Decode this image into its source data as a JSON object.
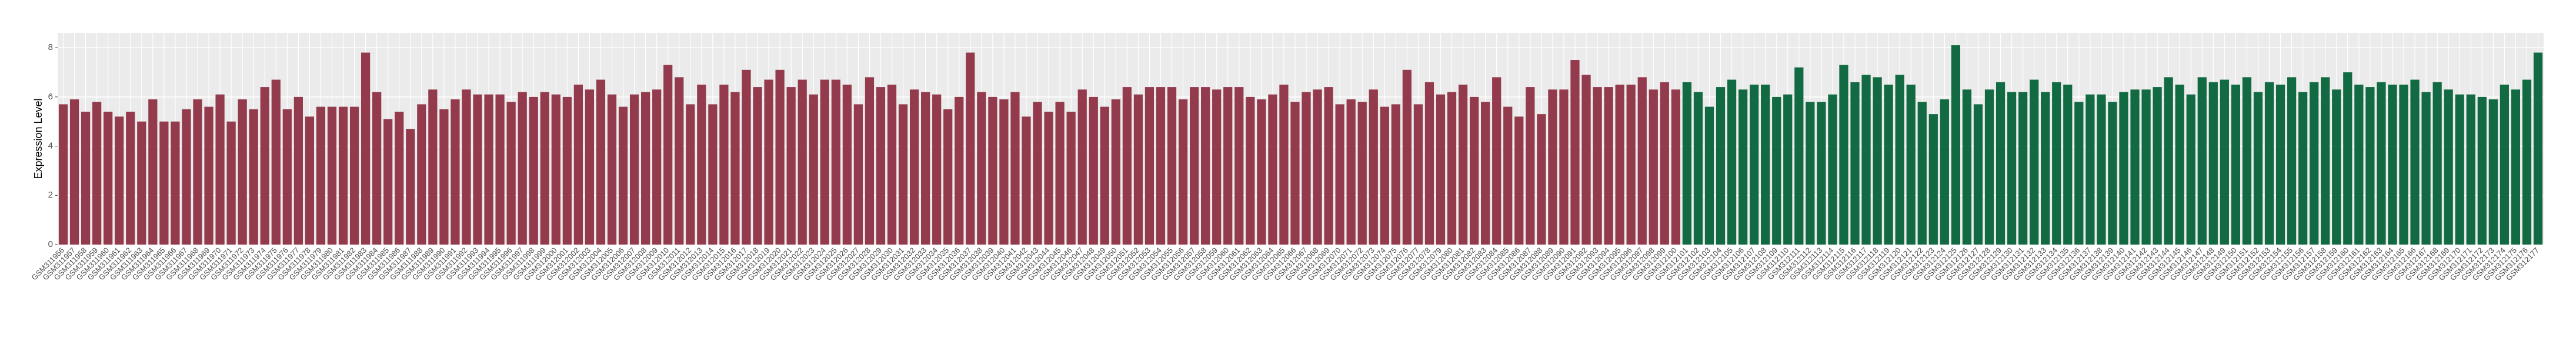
{
  "chart_data": {
    "type": "bar",
    "y_label": "Expression Level",
    "categories": [
      "GSM311956",
      "GSM311957",
      "GSM311958",
      "GSM311959",
      "GSM311960",
      "GSM311961",
      "GSM311962",
      "GSM311963",
      "GSM311964",
      "GSM311965",
      "GSM311966",
      "GSM311967",
      "GSM311968",
      "GSM311969",
      "GSM311970",
      "GSM311971",
      "GSM311972",
      "GSM311973",
      "GSM311974",
      "GSM311975",
      "GSM311976",
      "GSM311977",
      "GSM311978",
      "GSM311979",
      "GSM311980",
      "GSM311981",
      "GSM311982",
      "GSM311983",
      "GSM311984",
      "GSM311985",
      "GSM311986",
      "GSM311987",
      "GSM311988",
      "GSM311989",
      "GSM311990",
      "GSM311991",
      "GSM311992",
      "GSM311993",
      "GSM311994",
      "GSM311995",
      "GSM311996",
      "GSM311997",
      "GSM311998",
      "GSM311999",
      "GSM312000",
      "GSM312001",
      "GSM312002",
      "GSM312003",
      "GSM312004",
      "GSM312005",
      "GSM312006",
      "GSM312007",
      "GSM312008",
      "GSM312009",
      "GSM312010",
      "GSM312011",
      "GSM312012",
      "GSM312013",
      "GSM312014",
      "GSM312015",
      "GSM312016",
      "GSM312017",
      "GSM312018",
      "GSM312019",
      "GSM312020",
      "GSM312021",
      "GSM312022",
      "GSM312023",
      "GSM312024",
      "GSM312025",
      "GSM312026",
      "GSM312027",
      "GSM312028",
      "GSM312029",
      "GSM312030",
      "GSM312031",
      "GSM312032",
      "GSM312033",
      "GSM312034",
      "GSM312035",
      "GSM312036",
      "GSM312037",
      "GSM312038",
      "GSM312039",
      "GSM312040",
      "GSM312041",
      "GSM312042",
      "GSM312043",
      "GSM312044",
      "GSM312045",
      "GSM312046",
      "GSM312047",
      "GSM312048",
      "GSM312049",
      "GSM312050",
      "GSM312051",
      "GSM312052",
      "GSM312053",
      "GSM312054",
      "GSM312055",
      "GSM312056",
      "GSM312057",
      "GSM312058",
      "GSM312059",
      "GSM312060",
      "GSM312061",
      "GSM312062",
      "GSM312063",
      "GSM312064",
      "GSM312065",
      "GSM312066",
      "GSM312067",
      "GSM312068",
      "GSM312069",
      "GSM312070",
      "GSM312071",
      "GSM312072",
      "GSM312073",
      "GSM312074",
      "GSM312075",
      "GSM312076",
      "GSM312077",
      "GSM312078",
      "GSM312079",
      "GSM312080",
      "GSM312081",
      "GSM312082",
      "GSM312083",
      "GSM312084",
      "GSM312085",
      "GSM312086",
      "GSM312087",
      "GSM312088",
      "GSM312089",
      "GSM312090",
      "GSM312091",
      "GSM312092",
      "GSM312093",
      "GSM312094",
      "GSM312095",
      "GSM312096",
      "GSM312097",
      "GSM312098",
      "GSM312099",
      "GSM312100",
      "GSM312101",
      "GSM312102",
      "GSM312103",
      "GSM312104",
      "GSM312105",
      "GSM312106",
      "GSM312107",
      "GSM312108",
      "GSM312109",
      "GSM312110",
      "GSM312111",
      "GSM312112",
      "GSM312113",
      "GSM312114",
      "GSM312115",
      "GSM312116",
      "GSM312117",
      "GSM312118",
      "GSM312119",
      "GSM312120",
      "GSM312121",
      "GSM312122",
      "GSM312123",
      "GSM312124",
      "GSM312125",
      "GSM312126",
      "GSM312127",
      "GSM312128",
      "GSM312129",
      "GSM312130",
      "GSM312131",
      "GSM312132",
      "GSM312133",
      "GSM312134",
      "GSM312135",
      "GSM312136",
      "GSM312137",
      "GSM312138",
      "GSM312139",
      "GSM312140",
      "GSM312141",
      "GSM312142",
      "GSM312143",
      "GSM312144",
      "GSM312145",
      "GSM312146",
      "GSM312147",
      "GSM312148",
      "GSM312149",
      "GSM312150",
      "GSM312151",
      "GSM312152",
      "GSM312153",
      "GSM312154",
      "GSM312155",
      "GSM312156",
      "GSM312157",
      "GSM312158",
      "GSM312159",
      "GSM312160",
      "GSM312161",
      "GSM312162",
      "GSM312163",
      "GSM312164",
      "GSM312165",
      "GSM312166",
      "GSM312167",
      "GSM312168",
      "GSM312169",
      "GSM312170",
      "GSM312171",
      "GSM312172",
      "GSM312173",
      "GSM312174",
      "GSM312175",
      "GSM312176",
      "GSM312177"
    ],
    "values": [
      5.7,
      5.9,
      5.4,
      5.8,
      5.4,
      5.2,
      5.4,
      5.0,
      5.9,
      5.0,
      5.0,
      5.5,
      5.9,
      5.6,
      6.1,
      5.0,
      5.9,
      5.5,
      6.4,
      6.7,
      5.5,
      6.0,
      5.2,
      5.6,
      5.6,
      5.6,
      5.6,
      7.8,
      6.2,
      5.1,
      5.4,
      4.7,
      5.7,
      6.3,
      5.5,
      5.9,
      6.3,
      6.1,
      6.1,
      6.1,
      5.8,
      6.2,
      6.0,
      6.2,
      6.1,
      6.0,
      6.5,
      6.3,
      6.7,
      6.1,
      5.6,
      6.1,
      6.2,
      6.3,
      7.3,
      6.8,
      5.7,
      6.5,
      5.7,
      6.5,
      6.2,
      7.1,
      6.4,
      6.7,
      7.1,
      6.4,
      6.7,
      6.1,
      6.7,
      6.7,
      6.5,
      5.7,
      6.8,
      6.4,
      6.5,
      5.7,
      6.3,
      6.2,
      6.1,
      5.5,
      6.0,
      7.8,
      6.2,
      6.0,
      5.9,
      6.2,
      5.2,
      5.8,
      5.4,
      5.8,
      5.4,
      6.3,
      6.0,
      5.6,
      5.9,
      6.4,
      6.1,
      6.4,
      6.4,
      6.4,
      5.9,
      6.4,
      6.4,
      6.3,
      6.4,
      6.4,
      6.0,
      5.9,
      6.1,
      6.5,
      5.8,
      6.2,
      6.3,
      6.4,
      5.7,
      5.9,
      5.8,
      6.3,
      5.6,
      5.7,
      7.1,
      5.7,
      6.6,
      6.1,
      6.2,
      6.5,
      6.0,
      5.8,
      6.8,
      5.6,
      5.2,
      6.4,
      5.3,
      6.3,
      6.3,
      7.5,
      6.9,
      6.4,
      6.4,
      6.5,
      6.5,
      6.8,
      6.3,
      6.6,
      6.3,
      6.6,
      6.2,
      5.6,
      6.4,
      6.7,
      6.3,
      6.5,
      6.5,
      6.0,
      6.1,
      7.2,
      5.8,
      5.8,
      6.1,
      7.3,
      6.6,
      6.9,
      6.8,
      6.5,
      6.9,
      6.5,
      5.8,
      5.3,
      5.9,
      8.1,
      6.3,
      5.7,
      6.3,
      6.6,
      6.2,
      6.2,
      6.7,
      6.2,
      6.6,
      6.5,
      5.8,
      6.1,
      6.1,
      5.8,
      6.2,
      6.3,
      6.3,
      6.4,
      6.8,
      6.5,
      6.1,
      6.8,
      6.6,
      6.7,
      6.5,
      6.8,
      6.2,
      6.6,
      6.5,
      6.8,
      6.2,
      6.6,
      6.8,
      6.3,
      7.0,
      6.5,
      6.4,
      6.6,
      6.5,
      6.5,
      6.7,
      6.2,
      6.6,
      6.3,
      6.1,
      6.1,
      6.0,
      5.9,
      6.5,
      6.3,
      6.7,
      7.8
    ],
    "colors": [
      "#943a4d",
      "#943a4d",
      "#943a4d",
      "#943a4d",
      "#943a4d",
      "#943a4d",
      "#943a4d",
      "#943a4d",
      "#943a4d",
      "#943a4d",
      "#943a4d",
      "#943a4d",
      "#943a4d",
      "#943a4d",
      "#943a4d",
      "#943a4d",
      "#943a4d",
      "#943a4d",
      "#943a4d",
      "#943a4d",
      "#943a4d",
      "#943a4d",
      "#943a4d",
      "#943a4d",
      "#943a4d",
      "#943a4d",
      "#943a4d",
      "#943a4d",
      "#943a4d",
      "#943a4d",
      "#943a4d",
      "#943a4d",
      "#943a4d",
      "#943a4d",
      "#943a4d",
      "#943a4d",
      "#943a4d",
      "#943a4d",
      "#943a4d",
      "#943a4d",
      "#943a4d",
      "#943a4d",
      "#943a4d",
      "#943a4d",
      "#943a4d",
      "#943a4d",
      "#943a4d",
      "#943a4d",
      "#943a4d",
      "#943a4d",
      "#943a4d",
      "#943a4d",
      "#943a4d",
      "#943a4d",
      "#943a4d",
      "#943a4d",
      "#943a4d",
      "#943a4d",
      "#943a4d",
      "#943a4d",
      "#943a4d",
      "#943a4d",
      "#943a4d",
      "#943a4d",
      "#943a4d",
      "#943a4d",
      "#943a4d",
      "#943a4d",
      "#943a4d",
      "#943a4d",
      "#943a4d",
      "#943a4d",
      "#943a4d",
      "#943a4d",
      "#943a4d",
      "#943a4d",
      "#943a4d",
      "#943a4d",
      "#943a4d",
      "#943a4d",
      "#943a4d",
      "#943a4d",
      "#943a4d",
      "#943a4d",
      "#943a4d",
      "#943a4d",
      "#943a4d",
      "#943a4d",
      "#943a4d",
      "#943a4d",
      "#943a4d",
      "#943a4d",
      "#943a4d",
      "#943a4d",
      "#943a4d",
      "#943a4d",
      "#943a4d",
      "#943a4d",
      "#943a4d",
      "#943a4d",
      "#943a4d",
      "#943a4d",
      "#943a4d",
      "#943a4d",
      "#943a4d",
      "#943a4d",
      "#943a4d",
      "#943a4d",
      "#943a4d",
      "#943a4d",
      "#943a4d",
      "#943a4d",
      "#943a4d",
      "#943a4d",
      "#943a4d",
      "#943a4d",
      "#943a4d",
      "#943a4d",
      "#943a4d",
      "#943a4d",
      "#943a4d",
      "#943a4d",
      "#943a4d",
      "#943a4d",
      "#943a4d",
      "#943a4d",
      "#943a4d",
      "#943a4d",
      "#943a4d",
      "#943a4d",
      "#943a4d",
      "#943a4d",
      "#943a4d",
      "#943a4d",
      "#943a4d",
      "#943a4d",
      "#943a4d",
      "#943a4d",
      "#943a4d",
      "#943a4d",
      "#943a4d",
      "#943a4d",
      "#943a4d",
      "#943a4d",
      "#943a4d",
      "#126a42",
      "#126a42",
      "#126a42",
      "#126a42",
      "#126a42",
      "#126a42",
      "#126a42",
      "#126a42",
      "#126a42",
      "#126a42",
      "#126a42",
      "#126a42",
      "#126a42",
      "#126a42",
      "#126a42",
      "#126a42",
      "#126a42",
      "#126a42",
      "#126a42",
      "#126a42",
      "#126a42",
      "#126a42",
      "#126a42",
      "#126a42",
      "#126a42",
      "#126a42",
      "#126a42",
      "#126a42",
      "#126a42",
      "#126a42",
      "#126a42",
      "#126a42",
      "#126a42",
      "#126a42",
      "#126a42",
      "#126a42",
      "#126a42",
      "#126a42",
      "#126a42",
      "#126a42",
      "#126a42",
      "#126a42",
      "#126a42",
      "#126a42",
      "#126a42",
      "#126a42",
      "#126a42",
      "#126a42",
      "#126a42",
      "#126a42",
      "#126a42",
      "#126a42",
      "#126a42",
      "#126a42",
      "#126a42",
      "#126a42",
      "#126a42",
      "#126a42",
      "#126a42",
      "#126a42",
      "#126a42",
      "#126a42",
      "#126a42",
      "#126a42",
      "#126a42",
      "#126a42",
      "#126a42",
      "#126a42",
      "#126a42",
      "#126a42",
      "#126a42",
      "#126a42",
      "#126a42",
      "#126a42",
      "#126a42",
      "#126a42",
      "#126a42"
    ],
    "ylim": [
      0,
      8.6
    ],
    "yticks": [
      0,
      2,
      4,
      6,
      8
    ],
    "grid": true
  }
}
